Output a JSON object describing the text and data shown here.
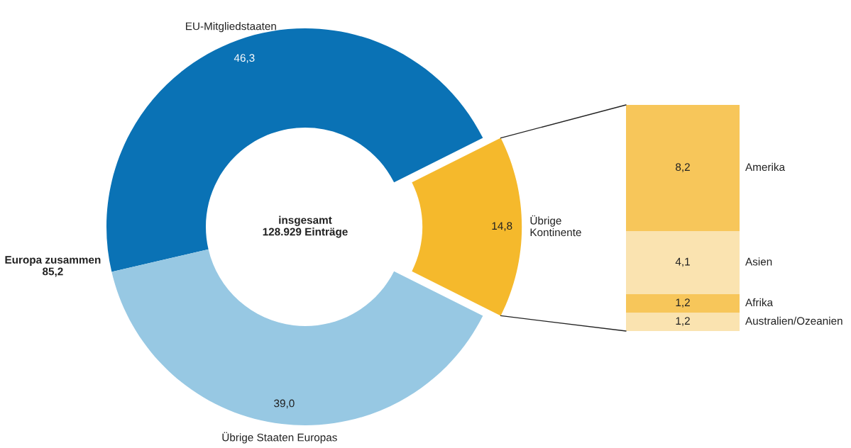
{
  "chart_data": [
    {
      "type": "donut",
      "categories": [
        "EU-Mitgliedstaaten",
        "Übrige Staaten Europas",
        "Übrige Kontinente"
      ],
      "values": [
        46.3,
        39.0,
        14.8
      ],
      "colors": [
        "#0a72b5",
        "#97c8e3",
        "#f5b92c"
      ],
      "value_labels": [
        "46,3",
        "39,0",
        "14,8"
      ],
      "annotations": [
        "insgesamt\n128.929 Einträge",
        "Europa zusammen\n85,2"
      ]
    },
    {
      "type": "bar",
      "stacked": true,
      "categories": [
        null
      ],
      "series": [
        {
          "name": "Australien/Ozeanien",
          "color": "#fae3b0",
          "values": [
            1.2
          ],
          "value_labels": [
            "1,2"
          ]
        },
        {
          "name": "Afrika",
          "color": "#f7c65a",
          "values": [
            1.2
          ],
          "value_labels": [
            "1,2"
          ]
        },
        {
          "name": "Asien",
          "color": "#fae3b0",
          "values": [
            4.1
          ],
          "value_labels": [
            "4,1"
          ]
        },
        {
          "name": "Amerika",
          "color": "#f7c65a",
          "values": [
            8.2
          ],
          "value_labels": [
            "8,2"
          ]
        }
      ]
    }
  ]
}
